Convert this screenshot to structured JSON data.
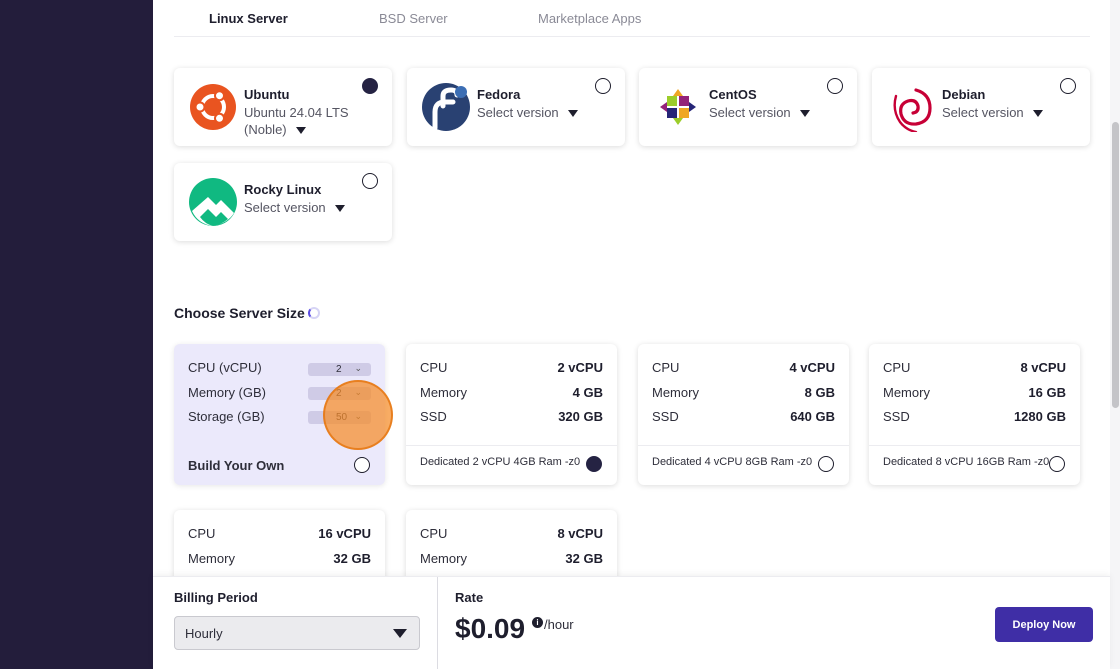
{
  "tabs": [
    {
      "label": "Linux Server",
      "active": true
    },
    {
      "label": "BSD Server",
      "active": false
    },
    {
      "label": "Marketplace Apps",
      "active": false
    }
  ],
  "os_images": [
    {
      "name": "Ubuntu",
      "version": "Ubuntu 24.04 LTS (Noble)",
      "selected": true,
      "icon": "ubuntu-logo-icon"
    },
    {
      "name": "Fedora",
      "version": "Select version",
      "selected": false,
      "icon": "fedora-logo-icon"
    },
    {
      "name": "CentOS",
      "version": "Select version",
      "selected": false,
      "icon": "centos-logo-icon"
    },
    {
      "name": "Debian",
      "version": "Select version",
      "selected": false,
      "icon": "debian-logo-icon"
    },
    {
      "name": "Rocky Linux",
      "version": "Select version",
      "selected": false,
      "icon": "rocky-linux-logo-icon"
    }
  ],
  "server_size": {
    "title": "Choose Server Size",
    "build_your_own": {
      "label": "Build Your Own",
      "fields": [
        {
          "label": "CPU (vCPU)",
          "value": "2"
        },
        {
          "label": "Memory (GB)",
          "value": "2"
        },
        {
          "label": "Storage (GB)",
          "value": "50"
        }
      ],
      "selected": false
    },
    "plans": [
      {
        "cpu_label": "CPU",
        "cpu": "2 vCPU",
        "mem_label": "Memory",
        "mem": "4 GB",
        "disk_label": "SSD",
        "disk": "320 GB",
        "name": "Dedicated 2 vCPU 4GB Ram -z0",
        "selected": true
      },
      {
        "cpu_label": "CPU",
        "cpu": "4 vCPU",
        "mem_label": "Memory",
        "mem": "8 GB",
        "disk_label": "SSD",
        "disk": "640 GB",
        "name": "Dedicated 4 vCPU 8GB Ram -z0",
        "selected": false
      },
      {
        "cpu_label": "CPU",
        "cpu": "8 vCPU",
        "mem_label": "Memory",
        "mem": "16 GB",
        "disk_label": "SSD",
        "disk": "1280 GB",
        "name": "Dedicated 8 vCPU 16GB Ram -z0",
        "selected": false
      },
      {
        "cpu_label": "CPU",
        "cpu": "16 vCPU",
        "mem_label": "Memory",
        "mem": "32 GB"
      },
      {
        "cpu_label": "CPU",
        "cpu": "8 vCPU",
        "mem_label": "Memory",
        "mem": "32 GB"
      }
    ]
  },
  "footer": {
    "billing_label": "Billing Period",
    "billing_value": "Hourly",
    "rate_label": "Rate",
    "rate_value": "$0.09",
    "rate_unit": "/hour",
    "info_glyph": "i",
    "deploy_label": "Deploy Now"
  },
  "colors": {
    "sidebar": "#231d3b",
    "accent": "#3f2ea6",
    "selected_radio": "#252343",
    "byo_card": "#ebe9fb"
  }
}
